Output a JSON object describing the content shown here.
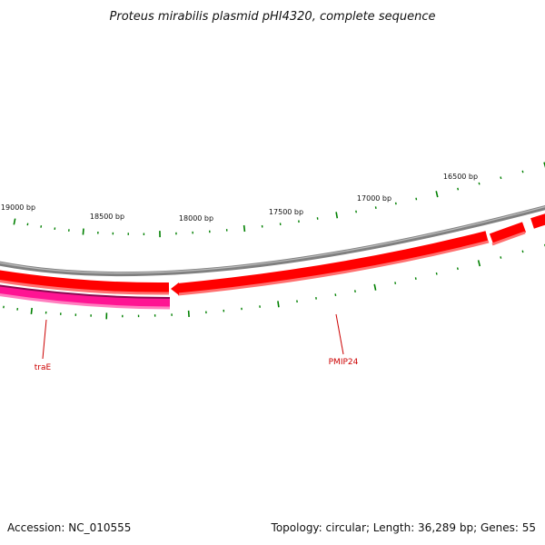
{
  "title": "Proteus mirabilis plasmid pHI4320, complete sequence",
  "footer": {
    "accession": "Accession: NC_010555",
    "summary": "Topology: circular; Length: 36,289 bp; Genes: 55"
  },
  "ruler": {
    "tick_labels": [
      {
        "label": "19000 bp",
        "bp": 19000
      },
      {
        "label": "18500 bp",
        "bp": 18500
      },
      {
        "label": "18000 bp",
        "bp": 18000
      },
      {
        "label": "17500 bp",
        "bp": 17500
      },
      {
        "label": "17000 bp",
        "bp": 17000
      },
      {
        "label": "16500 bp",
        "bp": 16500
      }
    ]
  },
  "gene_labels": [
    {
      "name": "traE"
    },
    {
      "name": "PMIP24"
    }
  ],
  "colors": {
    "backbone": "#808080",
    "forward_gene": "#ff0000",
    "reverse_gene": "#ff1493",
    "tick": "#008000",
    "label": "#cc0000"
  }
}
